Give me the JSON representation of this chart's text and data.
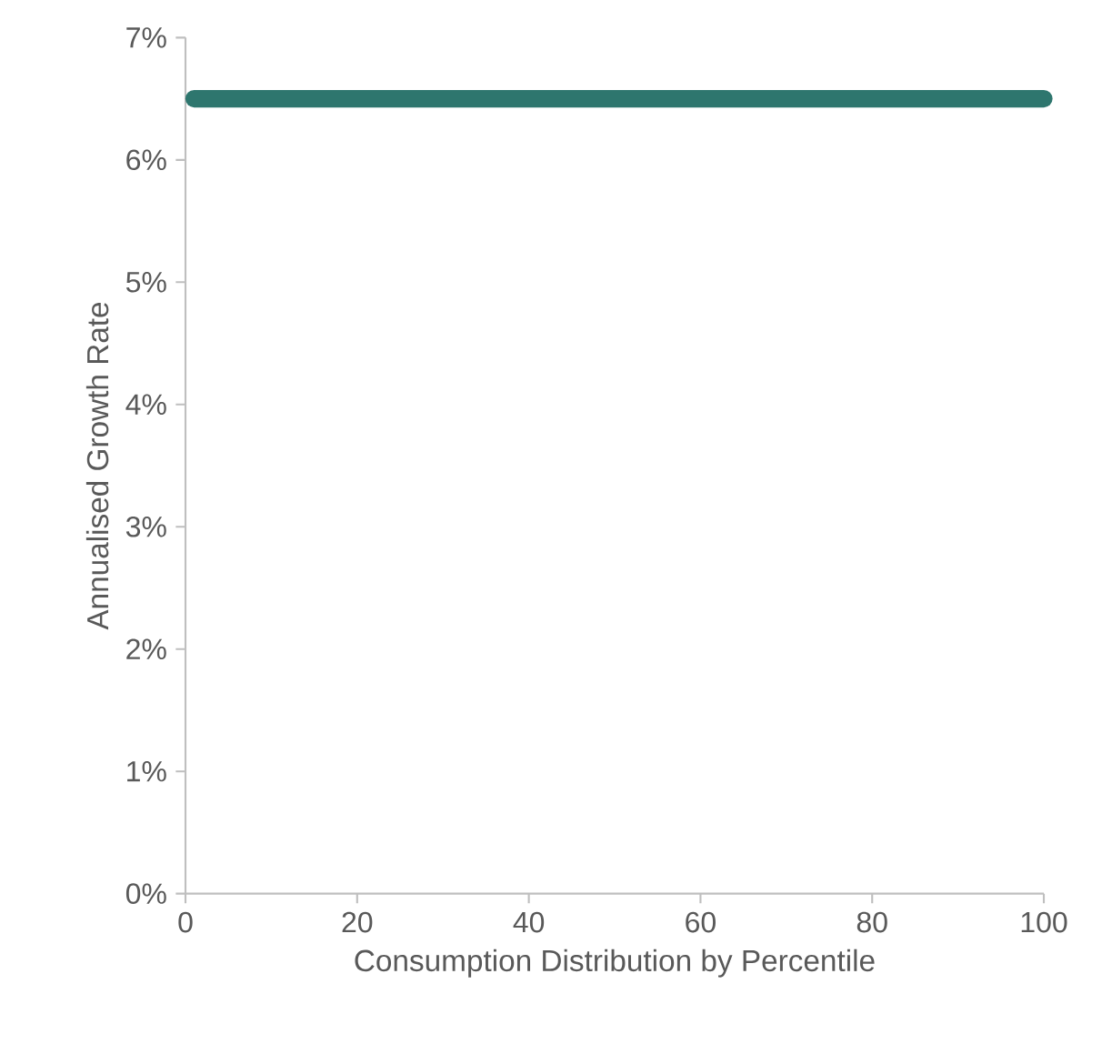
{
  "chart_data": {
    "type": "line",
    "xlabel": "Consumption  Distribution  by Percentile",
    "ylabel": "Annualised  Growth Rate",
    "x": [
      1,
      100
    ],
    "series": [
      {
        "color": "#2e766e",
        "values": [
          6.5,
          6.5
        ]
      }
    ],
    "line_style": "solid",
    "xlim": [
      0,
      100
    ],
    "xticks": [
      0,
      20,
      40,
      60,
      80,
      100
    ],
    "ylim": [
      0,
      7
    ],
    "yticks": [
      {
        "value": 0,
        "label": "0%"
      },
      {
        "value": 1,
        "label": "1%"
      },
      {
        "value": 2,
        "label": "2%"
      },
      {
        "value": 3,
        "label": "3%"
      },
      {
        "value": 4,
        "label": "4%"
      },
      {
        "value": 5,
        "label": "5%"
      },
      {
        "value": 6,
        "label": "6%"
      },
      {
        "value": 7,
        "label": "7%"
      }
    ]
  }
}
